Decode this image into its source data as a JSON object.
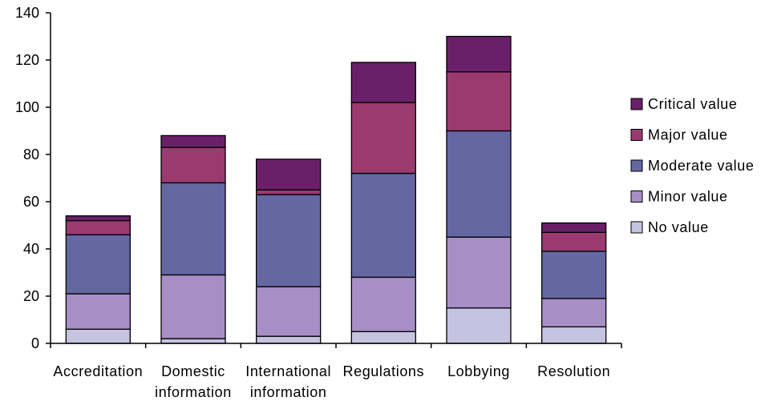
{
  "chart_data": {
    "type": "bar",
    "stacked": true,
    "title": "",
    "xlabel": "",
    "ylabel": "",
    "ylim": [
      0,
      140
    ],
    "yticks": [
      0,
      20,
      40,
      60,
      80,
      100,
      120,
      140
    ],
    "grid": false,
    "legend_position": "right",
    "categories": [
      [
        "Accreditation"
      ],
      [
        "Domestic",
        "information"
      ],
      [
        "International",
        "information"
      ],
      [
        "Regulations"
      ],
      [
        "Lobbying"
      ],
      [
        "Resolution"
      ]
    ],
    "series": [
      {
        "name": "No value",
        "color": "#c6c3e0",
        "values": [
          6,
          2,
          3,
          5,
          15,
          7
        ]
      },
      {
        "name": "Minor value",
        "color": "#a78fc6",
        "values": [
          15,
          27,
          21,
          23,
          30,
          12
        ]
      },
      {
        "name": "Moderate value",
        "color": "#6567a2",
        "values": [
          25,
          39,
          39,
          44,
          45,
          20
        ]
      },
      {
        "name": "Major value",
        "color": "#9a3a6f",
        "values": [
          6,
          15,
          2,
          30,
          25,
          8
        ]
      },
      {
        "name": "Critical value",
        "color": "#6a2068",
        "values": [
          2,
          5,
          13,
          17,
          15,
          4
        ]
      }
    ]
  }
}
